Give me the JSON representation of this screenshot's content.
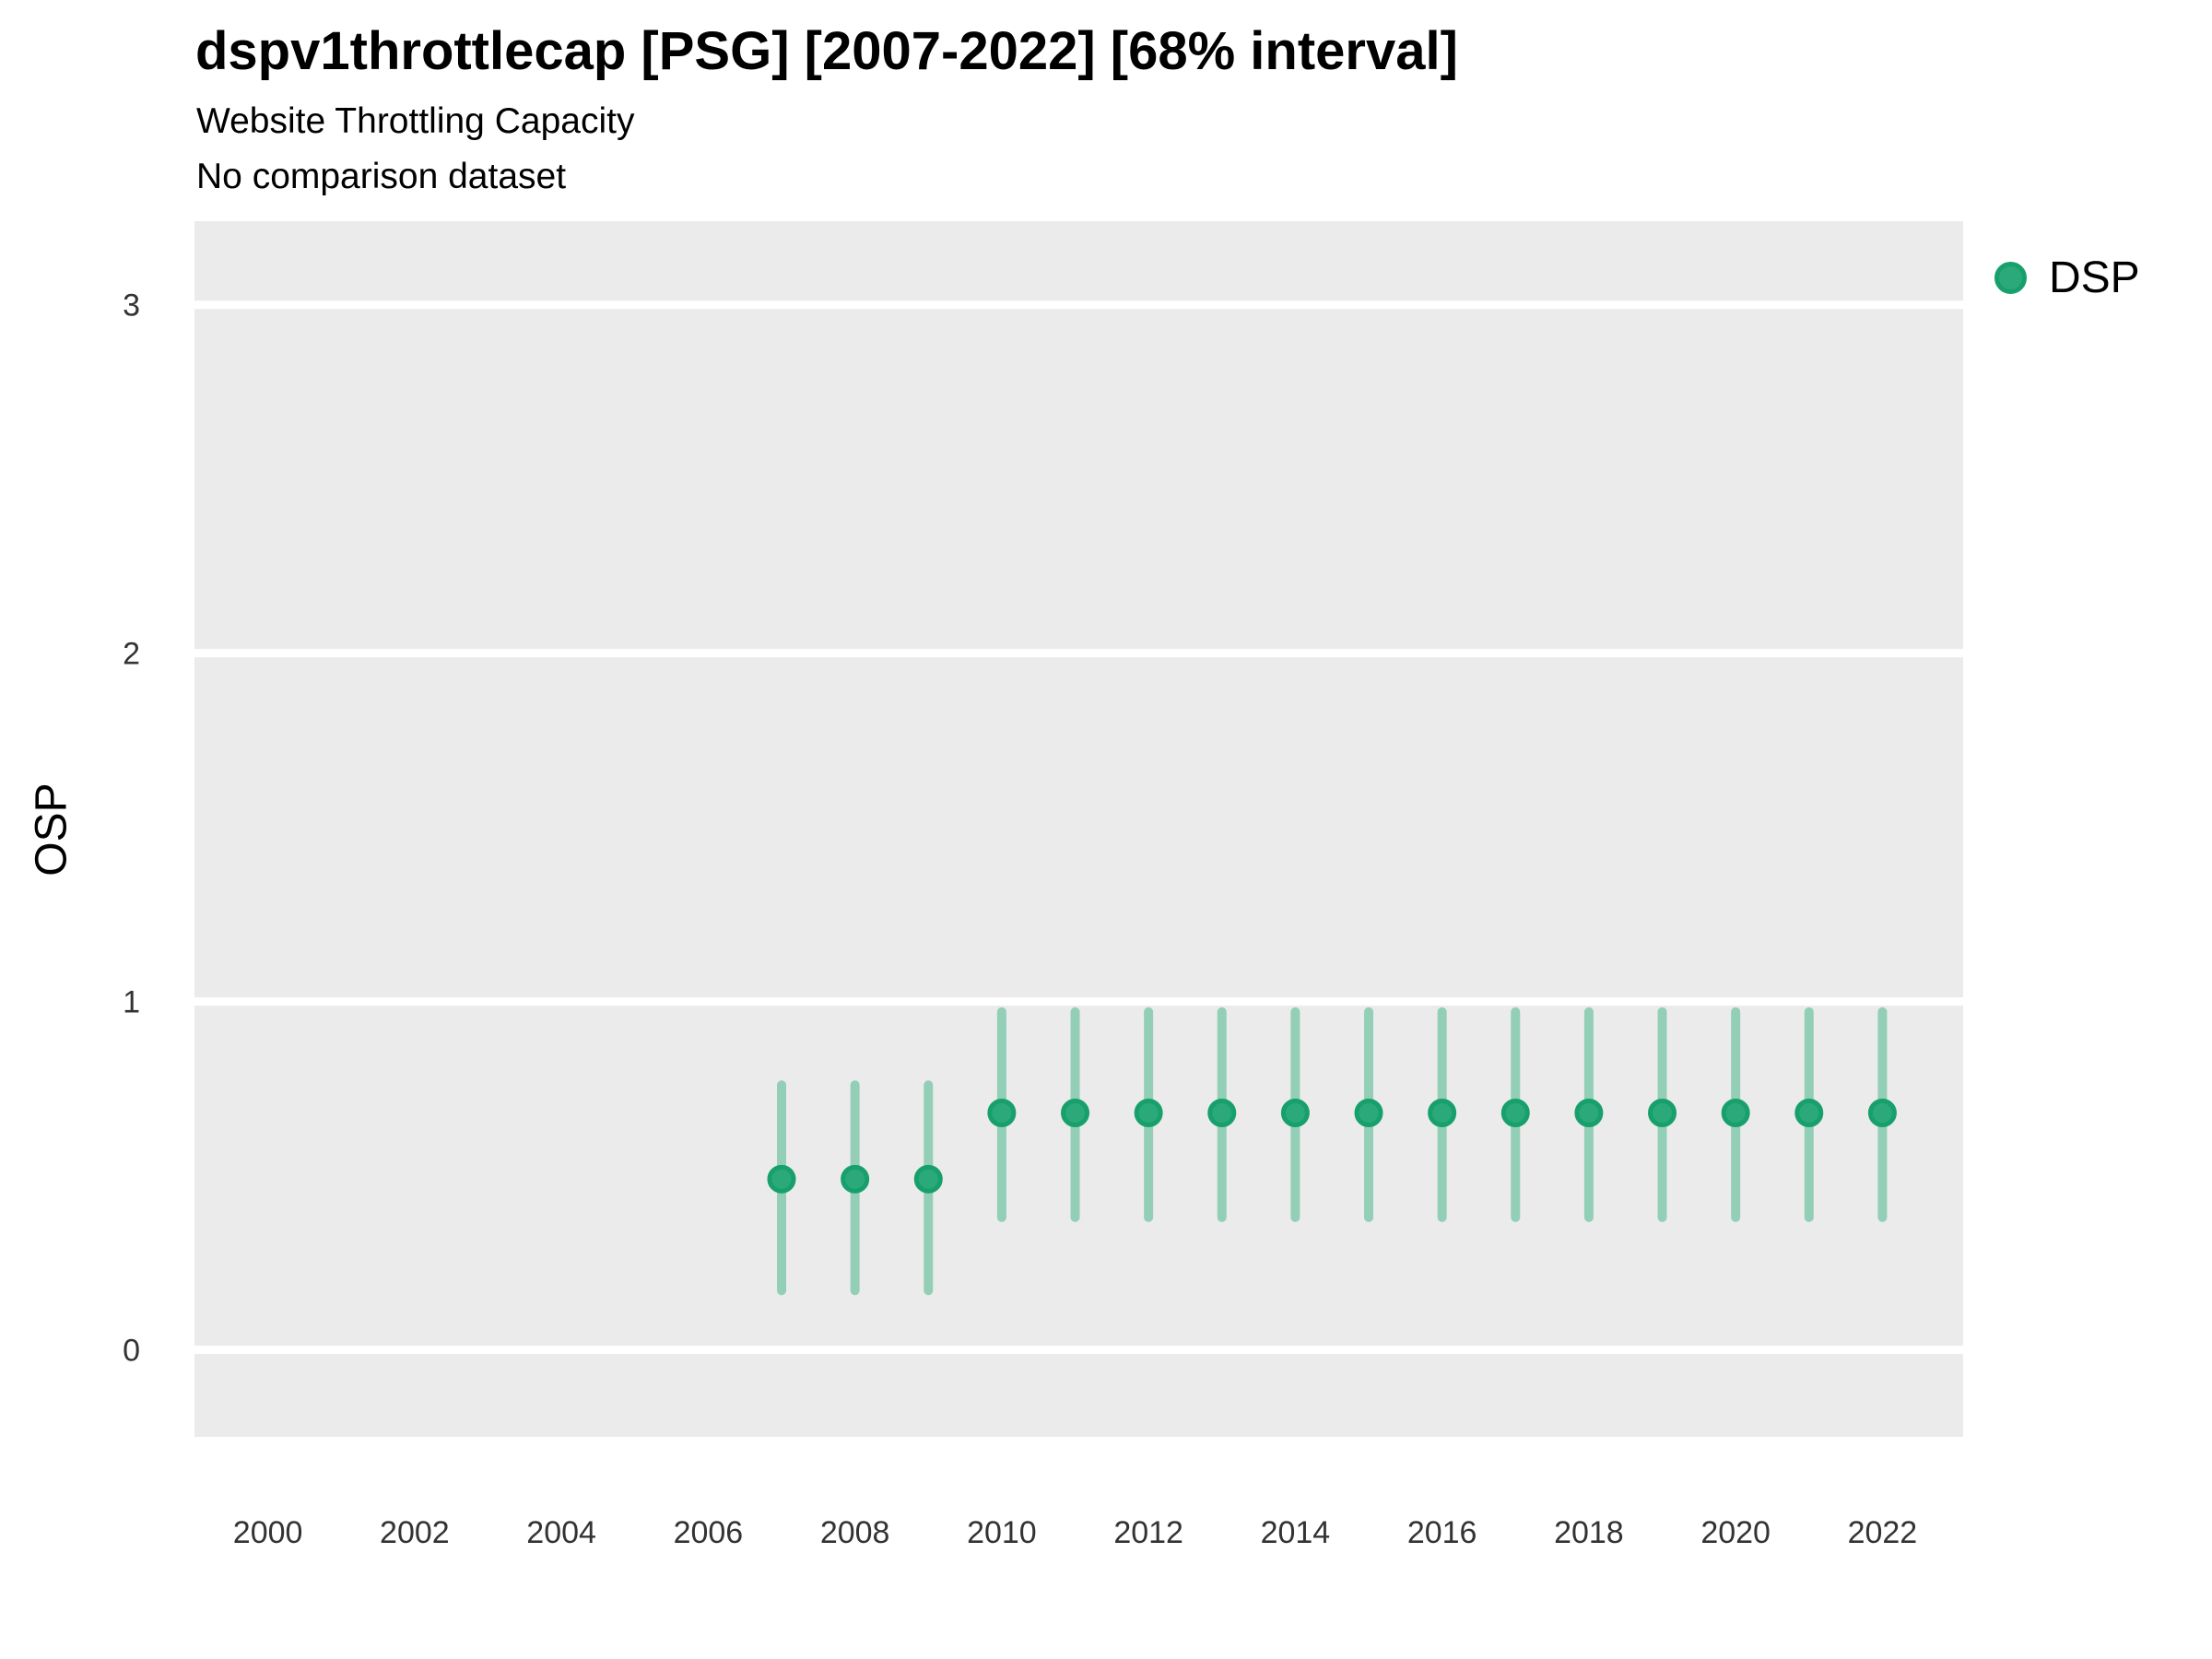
{
  "header": {
    "title": "dspv1throttlecap [PSG] [2007-2022] [68% interval]",
    "subtitle": "Website Throttling Capacity",
    "comparison_note": "No comparison dataset"
  },
  "legend": {
    "items": [
      {
        "label": "DSP",
        "marker": "circle",
        "color": "#2BA97B",
        "ring_color": "#17A06C"
      }
    ]
  },
  "chart_data": {
    "type": "scatter",
    "title": "dspv1throttlecap [PSG] [2007-2022] [68% interval]",
    "subtitle": "Website Throttling Capacity",
    "note": "No comparison dataset",
    "interval": "68%",
    "xlabel": "",
    "ylabel": "OSP",
    "xlim": [
      1999.0,
      2023.1
    ],
    "ylim": [
      -0.25,
      3.24
    ],
    "x_ticks": [
      2000,
      2002,
      2004,
      2006,
      2008,
      2010,
      2012,
      2014,
      2016,
      2018,
      2020,
      2022
    ],
    "y_ticks": [
      0,
      1,
      2,
      3
    ],
    "grid": "horizontal-major-only",
    "legend_position": "right-top",
    "panel_background": "#EBEBEB",
    "gridline_color": "#FFFFFF",
    "tick_label_color": "#333333",
    "series": [
      {
        "name": "DSP",
        "marker_color": "#2BA97B",
        "marker_ring_color": "#17A06C",
        "interval_color": "#92CFB6",
        "points": [
          {
            "x": 2007,
            "y": 0.49,
            "lower": 0.17,
            "upper": 0.76
          },
          {
            "x": 2008,
            "y": 0.49,
            "lower": 0.17,
            "upper": 0.76
          },
          {
            "x": 2009,
            "y": 0.49,
            "lower": 0.17,
            "upper": 0.76
          },
          {
            "x": 2010,
            "y": 0.68,
            "lower": 0.38,
            "upper": 0.97
          },
          {
            "x": 2011,
            "y": 0.68,
            "lower": 0.38,
            "upper": 0.97
          },
          {
            "x": 2012,
            "y": 0.68,
            "lower": 0.38,
            "upper": 0.97
          },
          {
            "x": 2013,
            "y": 0.68,
            "lower": 0.38,
            "upper": 0.97
          },
          {
            "x": 2014,
            "y": 0.68,
            "lower": 0.38,
            "upper": 0.97
          },
          {
            "x": 2015,
            "y": 0.68,
            "lower": 0.38,
            "upper": 0.97
          },
          {
            "x": 2016,
            "y": 0.68,
            "lower": 0.38,
            "upper": 0.97
          },
          {
            "x": 2017,
            "y": 0.68,
            "lower": 0.38,
            "upper": 0.97
          },
          {
            "x": 2018,
            "y": 0.68,
            "lower": 0.38,
            "upper": 0.97
          },
          {
            "x": 2019,
            "y": 0.68,
            "lower": 0.38,
            "upper": 0.97
          },
          {
            "x": 2020,
            "y": 0.68,
            "lower": 0.38,
            "upper": 0.97
          },
          {
            "x": 2021,
            "y": 0.68,
            "lower": 0.38,
            "upper": 0.97
          },
          {
            "x": 2022,
            "y": 0.68,
            "lower": 0.38,
            "upper": 0.97
          }
        ]
      }
    ]
  }
}
